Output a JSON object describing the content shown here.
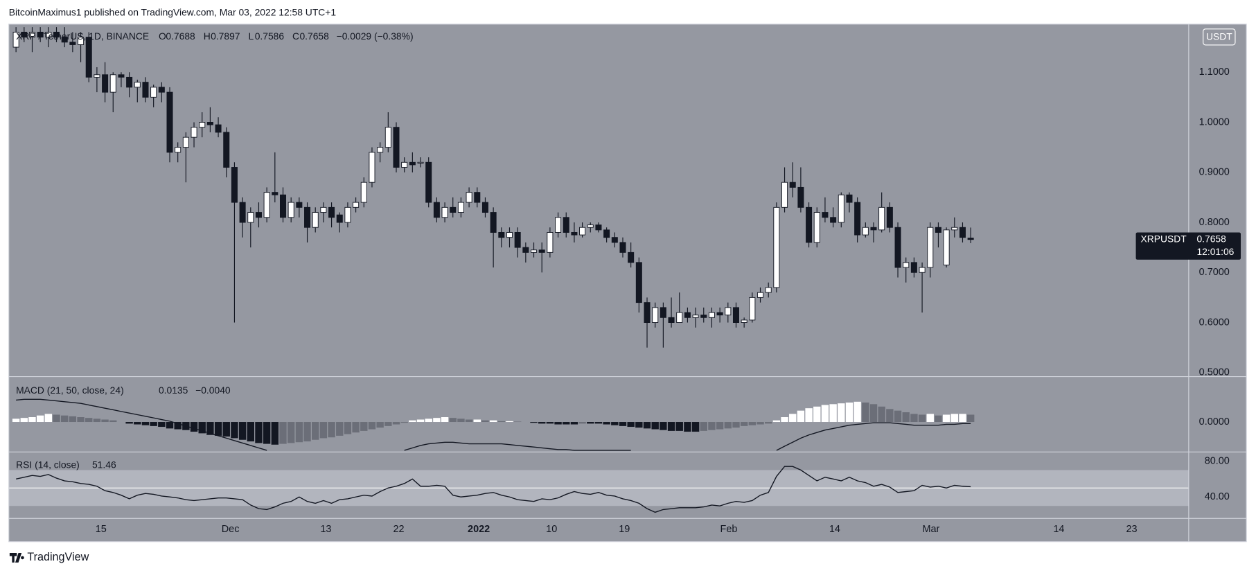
{
  "header": {
    "byline": "BitcoinMaximus1 published on TradingView.com, Mar 03, 2022 12:58 UTC+1"
  },
  "legend": {
    "symbol": "XRP / TetherUS, 1D, BINANCE",
    "o_label": "O",
    "o": "0.7688",
    "h_label": "H",
    "h": "0.7897",
    "l_label": "L",
    "l": "0.7586",
    "c_label": "C",
    "c": "0.7658",
    "change": "−0.0029 (−0.38%)"
  },
  "currency": "USDT",
  "price_badge": {
    "symbol": "XRPUSDT",
    "price": "0.7658",
    "countdown": "12:01:06"
  },
  "footer": {
    "brand": "TradingView"
  },
  "chart_data": [
    {
      "type": "candlestick",
      "up_color": "#ffffff",
      "down_color": "#131722",
      "wick_color": "#131722",
      "ylim": [
        0.492,
        1.196
      ],
      "yticks": [
        {
          "value": 1.1,
          "label": "1.1000"
        },
        {
          "value": 1.0,
          "label": "1.0000"
        },
        {
          "value": 0.9,
          "label": "0.9000"
        },
        {
          "value": 0.8,
          "label": "0.8000"
        },
        {
          "value": 0.7,
          "label": "0.7000"
        },
        {
          "value": 0.6,
          "label": "0.6000"
        },
        {
          "value": 0.5,
          "label": "0.5000"
        }
      ],
      "xticks": [
        {
          "value": 10.5,
          "label": "15"
        },
        {
          "value": 26.5,
          "label": "Dec"
        },
        {
          "value": 38.3,
          "label": "13"
        },
        {
          "value": 47.3,
          "label": "22"
        },
        {
          "value": 57.2,
          "label": "2022"
        },
        {
          "value": 66.2,
          "label": "10"
        },
        {
          "value": 75.2,
          "label": "19"
        },
        {
          "value": 88.1,
          "label": "Feb"
        },
        {
          "value": 101.2,
          "label": "14"
        },
        {
          "value": 113.1,
          "label": "Mar"
        },
        {
          "value": 128.9,
          "label": "14"
        },
        {
          "value": 137.9,
          "label": "23"
        }
      ],
      "ohlc": [
        [
          1.15,
          1.19,
          1.14,
          1.18
        ],
        [
          1.18,
          1.19,
          1.16,
          1.17
        ],
        [
          1.17,
          1.19,
          1.14,
          1.18
        ],
        [
          1.18,
          1.19,
          1.16,
          1.17
        ],
        [
          1.17,
          1.19,
          1.15,
          1.18
        ],
        [
          1.18,
          1.19,
          1.16,
          1.17
        ],
        [
          1.17,
          1.19,
          1.15,
          1.16
        ],
        [
          1.16,
          1.18,
          1.14,
          1.155
        ],
        [
          1.155,
          1.18,
          1.12,
          1.17
        ],
        [
          1.17,
          1.18,
          1.08,
          1.09
        ],
        [
          1.09,
          1.11,
          1.06,
          1.095
        ],
        [
          1.095,
          1.12,
          1.04,
          1.06
        ],
        [
          1.06,
          1.1,
          1.02,
          1.095
        ],
        [
          1.095,
          1.1,
          1.07,
          1.09
        ],
        [
          1.09,
          1.1,
          1.05,
          1.07
        ],
        [
          1.07,
          1.085,
          1.04,
          1.08
        ],
        [
          1.08,
          1.09,
          1.04,
          1.05
        ],
        [
          1.05,
          1.075,
          1.03,
          1.07
        ],
        [
          1.07,
          1.08,
          1.04,
          1.06
        ],
        [
          1.06,
          1.07,
          0.92,
          0.94
        ],
        [
          0.94,
          0.96,
          0.92,
          0.95
        ],
        [
          0.95,
          0.98,
          0.88,
          0.97
        ],
        [
          0.97,
          1.0,
          0.95,
          0.99
        ],
        [
          0.99,
          1.02,
          0.97,
          1.0
        ],
        [
          1.0,
          1.03,
          0.98,
          0.995
        ],
        [
          0.995,
          1.01,
          0.97,
          0.98
        ],
        [
          0.98,
          0.99,
          0.89,
          0.91
        ],
        [
          0.91,
          0.92,
          0.6,
          0.84
        ],
        [
          0.84,
          0.85,
          0.77,
          0.8
        ],
        [
          0.8,
          0.83,
          0.75,
          0.82
        ],
        [
          0.82,
          0.84,
          0.79,
          0.81
        ],
        [
          0.81,
          0.87,
          0.8,
          0.86
        ],
        [
          0.86,
          0.94,
          0.84,
          0.855
        ],
        [
          0.855,
          0.87,
          0.8,
          0.81
        ],
        [
          0.81,
          0.85,
          0.8,
          0.84
        ],
        [
          0.84,
          0.85,
          0.81,
          0.83
        ],
        [
          0.83,
          0.84,
          0.76,
          0.79
        ],
        [
          0.79,
          0.83,
          0.78,
          0.82
        ],
        [
          0.82,
          0.84,
          0.8,
          0.83
        ],
        [
          0.83,
          0.84,
          0.79,
          0.81
        ],
        [
          0.815,
          0.82,
          0.78,
          0.8
        ],
        [
          0.8,
          0.84,
          0.79,
          0.83
        ],
        [
          0.83,
          0.85,
          0.82,
          0.84
        ],
        [
          0.84,
          0.89,
          0.83,
          0.88
        ],
        [
          0.88,
          0.95,
          0.87,
          0.94
        ],
        [
          0.94,
          0.96,
          0.92,
          0.95
        ],
        [
          0.95,
          1.02,
          0.94,
          0.99
        ],
        [
          0.99,
          1.0,
          0.9,
          0.91
        ],
        [
          0.91,
          0.93,
          0.9,
          0.92
        ],
        [
          0.92,
          0.94,
          0.9,
          0.915
        ],
        [
          0.92,
          0.93,
          0.91,
          0.92
        ],
        [
          0.92,
          0.93,
          0.83,
          0.84
        ],
        [
          0.84,
          0.85,
          0.8,
          0.81
        ],
        [
          0.81,
          0.84,
          0.8,
          0.83
        ],
        [
          0.83,
          0.85,
          0.81,
          0.82
        ],
        [
          0.82,
          0.85,
          0.81,
          0.84
        ],
        [
          0.84,
          0.87,
          0.83,
          0.86
        ],
        [
          0.86,
          0.87,
          0.83,
          0.84
        ],
        [
          0.84,
          0.85,
          0.81,
          0.82
        ],
        [
          0.82,
          0.83,
          0.71,
          0.78
        ],
        [
          0.78,
          0.79,
          0.75,
          0.77
        ],
        [
          0.77,
          0.79,
          0.75,
          0.78
        ],
        [
          0.78,
          0.79,
          0.73,
          0.75
        ],
        [
          0.75,
          0.76,
          0.72,
          0.74
        ],
        [
          0.74,
          0.76,
          0.73,
          0.745
        ],
        [
          0.745,
          0.76,
          0.7,
          0.74
        ],
        [
          0.74,
          0.79,
          0.73,
          0.78
        ],
        [
          0.78,
          0.82,
          0.77,
          0.81
        ],
        [
          0.81,
          0.82,
          0.77,
          0.78
        ],
        [
          0.78,
          0.8,
          0.76,
          0.775
        ],
        [
          0.775,
          0.8,
          0.77,
          0.79
        ],
        [
          0.79,
          0.8,
          0.78,
          0.795
        ],
        [
          0.795,
          0.8,
          0.78,
          0.785
        ],
        [
          0.785,
          0.79,
          0.76,
          0.77
        ],
        [
          0.77,
          0.78,
          0.75,
          0.76
        ],
        [
          0.76,
          0.77,
          0.73,
          0.74
        ],
        [
          0.74,
          0.76,
          0.71,
          0.72
        ],
        [
          0.72,
          0.73,
          0.62,
          0.64
        ],
        [
          0.64,
          0.65,
          0.55,
          0.6
        ],
        [
          0.6,
          0.64,
          0.59,
          0.63
        ],
        [
          0.63,
          0.64,
          0.55,
          0.61
        ],
        [
          0.61,
          0.65,
          0.59,
          0.6
        ],
        [
          0.6,
          0.66,
          0.6,
          0.62
        ],
        [
          0.62,
          0.63,
          0.6,
          0.61
        ],
        [
          0.61,
          0.63,
          0.59,
          0.615
        ],
        [
          0.615,
          0.63,
          0.6,
          0.61
        ],
        [
          0.61,
          0.63,
          0.59,
          0.62
        ],
        [
          0.62,
          0.63,
          0.6,
          0.615
        ],
        [
          0.615,
          0.64,
          0.6,
          0.63
        ],
        [
          0.63,
          0.64,
          0.59,
          0.6
        ],
        [
          0.6,
          0.61,
          0.59,
          0.605
        ],
        [
          0.605,
          0.66,
          0.6,
          0.65
        ],
        [
          0.65,
          0.67,
          0.64,
          0.66
        ],
        [
          0.66,
          0.68,
          0.65,
          0.67
        ],
        [
          0.67,
          0.84,
          0.66,
          0.83
        ],
        [
          0.83,
          0.91,
          0.82,
          0.88
        ],
        [
          0.88,
          0.92,
          0.85,
          0.87
        ],
        [
          0.87,
          0.91,
          0.82,
          0.83
        ],
        [
          0.83,
          0.84,
          0.75,
          0.76
        ],
        [
          0.76,
          0.83,
          0.75,
          0.82
        ],
        [
          0.82,
          0.85,
          0.8,
          0.81
        ],
        [
          0.81,
          0.83,
          0.79,
          0.8
        ],
        [
          0.8,
          0.86,
          0.79,
          0.855
        ],
        [
          0.855,
          0.86,
          0.82,
          0.84
        ],
        [
          0.84,
          0.85,
          0.76,
          0.775
        ],
        [
          0.775,
          0.8,
          0.77,
          0.79
        ],
        [
          0.79,
          0.8,
          0.76,
          0.785
        ],
        [
          0.785,
          0.86,
          0.78,
          0.83
        ],
        [
          0.83,
          0.84,
          0.78,
          0.79
        ],
        [
          0.79,
          0.8,
          0.69,
          0.71
        ],
        [
          0.71,
          0.73,
          0.68,
          0.72
        ],
        [
          0.72,
          0.73,
          0.69,
          0.7
        ],
        [
          0.7,
          0.72,
          0.62,
          0.71
        ],
        [
          0.71,
          0.8,
          0.69,
          0.79
        ],
        [
          0.79,
          0.8,
          0.75,
          0.78
        ],
        [
          0.715,
          0.79,
          0.71,
          0.785
        ],
        [
          0.785,
          0.81,
          0.77,
          0.79
        ],
        [
          0.79,
          0.8,
          0.76,
          0.77
        ],
        [
          0.7688,
          0.7897,
          0.7586,
          0.7658
        ]
      ]
    },
    {
      "type": "macd",
      "title": "MACD (21, 50, close, 24)",
      "readout": [
        "0.0135",
        "−0.0040"
      ],
      "ylim": [
        -0.036,
        0.055
      ],
      "yticks": [
        {
          "value": 0,
          "label": "0.0000"
        }
      ],
      "rise_color": "#ffffff",
      "fall_color": "#6b6e78",
      "fall_negative_color": "#131722",
      "line_color": "#131722",
      "histogram": [
        0.004,
        0.005,
        0.006,
        0.008,
        0.01,
        0.009,
        0.008,
        0.007,
        0.006,
        0.005,
        0.004,
        0.003,
        0.002,
        0,
        -0.002,
        -0.003,
        -0.004,
        -0.005,
        -0.006,
        -0.008,
        -0.009,
        -0.01,
        -0.012,
        -0.014,
        -0.016,
        -0.017,
        -0.018,
        -0.02,
        -0.022,
        -0.024,
        -0.026,
        -0.027,
        -0.028,
        -0.027,
        -0.026,
        -0.025,
        -0.024,
        -0.022,
        -0.02,
        -0.019,
        -0.017,
        -0.015,
        -0.013,
        -0.011,
        -0.009,
        -0.007,
        -0.005,
        -0.003,
        -0.001,
        0.002,
        0.003,
        0.004,
        0.005,
        0.006,
        0.005,
        0.004,
        0.003,
        0.003,
        0.002,
        0.002,
        0.001,
        0.001,
        0.0005,
        0,
        -0.001,
        -0.002,
        -0.002,
        -0.003,
        -0.003,
        -0.003,
        -0.002,
        -0.002,
        -0.002,
        -0.003,
        -0.004,
        -0.005,
        -0.006,
        -0.007,
        -0.008,
        -0.009,
        -0.01,
        -0.011,
        -0.011,
        -0.012,
        -0.012,
        -0.011,
        -0.01,
        -0.009,
        -0.008,
        -0.007,
        -0.005,
        -0.004,
        -0.003,
        -0.002,
        0.002,
        0.006,
        0.01,
        0.014,
        0.017,
        0.019,
        0.021,
        0.022,
        0.023,
        0.024,
        0.025,
        0.024,
        0.022,
        0.019,
        0.016,
        0.014,
        0.012,
        0.01,
        0.009,
        0.01,
        0.008,
        0.009,
        0.01,
        0.01,
        0.009
      ],
      "line": [
        0.027,
        0.028,
        0.028,
        0.028,
        0.027,
        0.026,
        0.025,
        0.024,
        0.023,
        0.021,
        0.019,
        0.017,
        0.015,
        0.013,
        0.011,
        0.009,
        0.007,
        0.005,
        0.003,
        0.001,
        -0.002,
        -0.005,
        -0.008,
        -0.011,
        -0.014,
        -0.017,
        -0.02,
        -0.023,
        -0.026,
        -0.029,
        -0.032,
        -0.035,
        null,
        null,
        null,
        null,
        null,
        null,
        null,
        null,
        null,
        null,
        null,
        null,
        null,
        null,
        null,
        null,
        -0.035,
        -0.032,
        -0.029,
        -0.027,
        -0.026,
        -0.025,
        -0.025,
        -0.026,
        -0.027,
        -0.027,
        -0.027,
        -0.027,
        -0.027,
        -0.028,
        -0.029,
        -0.03,
        -0.031,
        -0.032,
        -0.033,
        -0.034,
        -0.034,
        -0.035,
        -0.035,
        -0.035,
        -0.035,
        -0.035,
        -0.035,
        -0.035,
        -0.035,
        null,
        null,
        null,
        null,
        null,
        null,
        null,
        null,
        null,
        null,
        null,
        null,
        null,
        null,
        null,
        null,
        null,
        -0.035,
        -0.03,
        -0.025,
        -0.02,
        -0.016,
        -0.013,
        -0.01,
        -0.008,
        -0.006,
        -0.004,
        -0.003,
        -0.002,
        -0.001,
        -0.001,
        -0.001,
        -0.002,
        -0.003,
        -0.004,
        -0.004,
        -0.004,
        -0.004,
        -0.003,
        -0.003,
        -0.002,
        -0.002
      ]
    },
    {
      "type": "rsi",
      "title": "RSI (14, close)",
      "readout": "51.46",
      "ylim": [
        17,
        89.3
      ],
      "yticks": [
        {
          "value": 80,
          "label": "80.00"
        },
        {
          "value": 40,
          "label": "40.00"
        }
      ],
      "band": [
        30,
        70
      ],
      "midline": 50,
      "band_color": "#b2b5be",
      "midline_color": "#ffffff",
      "line_color": "#131722",
      "values": [
        60,
        62,
        64,
        63,
        65,
        61,
        58,
        57,
        55,
        54,
        52,
        47,
        45,
        42,
        38,
        42,
        44,
        43,
        41,
        40,
        39,
        37,
        36,
        37,
        38,
        39,
        39,
        38,
        37,
        31,
        27,
        26,
        29,
        33,
        35,
        40,
        35,
        33,
        36,
        33,
        37,
        38,
        40,
        42,
        41,
        46,
        50,
        52,
        55,
        60,
        52,
        52,
        53,
        52,
        42,
        40,
        41,
        42,
        44,
        45,
        42,
        40,
        37,
        36,
        35,
        38,
        37,
        39,
        43,
        46,
        44,
        43,
        45,
        42,
        41,
        38,
        36,
        33,
        27,
        23,
        26,
        27,
        28,
        28,
        28,
        29,
        31,
        30,
        33,
        35,
        34,
        36,
        42,
        45,
        63,
        74,
        74,
        70,
        64,
        58,
        62,
        60,
        58,
        62,
        58,
        56,
        52,
        54,
        51,
        45,
        46,
        47,
        53,
        51,
        52,
        50,
        53,
        52,
        51.46
      ]
    }
  ]
}
